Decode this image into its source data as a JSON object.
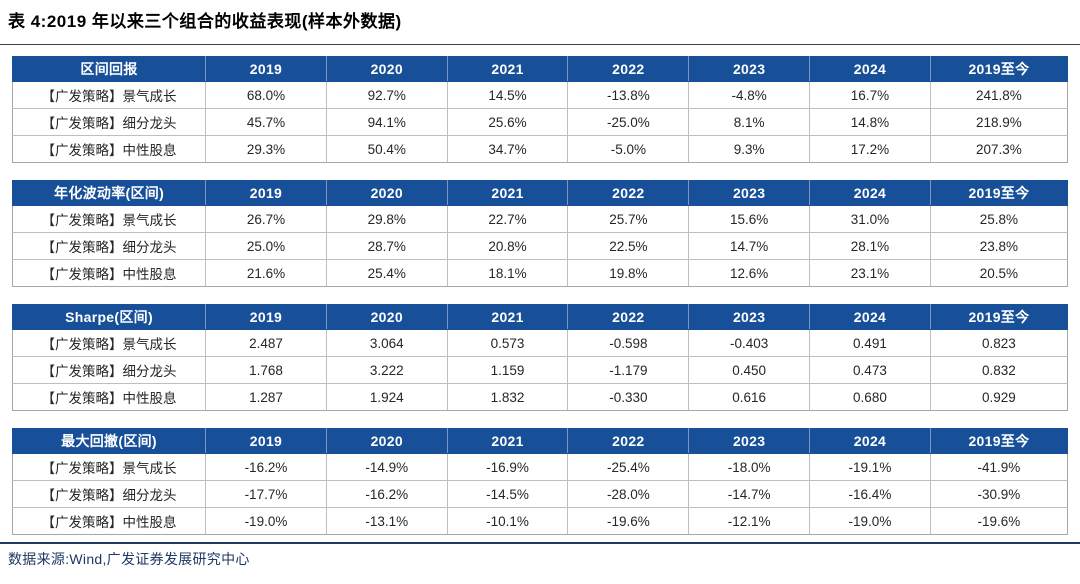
{
  "page": {
    "title": "表 4:2019 年以来三个组合的收益表现(样本外数据)",
    "source": "数据来源:Wind,广发证券发展研究中心"
  },
  "colors": {
    "header_bg": "#175099",
    "header_text": "#FFFFFF",
    "body_text": "#262626",
    "grid_line": "#BFBFBF",
    "source_text": "#1F3864"
  },
  "chart_data": {
    "type": "table",
    "title": "表 4:2019 年以来三个组合的收益表现(样本外数据)",
    "tables": [
      {
        "metric": "区间回报",
        "columns": [
          "2019",
          "2020",
          "2021",
          "2022",
          "2023",
          "2024",
          "2019至今"
        ],
        "rows": [
          {
            "label": "【广发策略】景气成长",
            "values": [
              "68.0%",
              "92.7%",
              "14.5%",
              "-13.8%",
              "-4.8%",
              "16.7%",
              "241.8%"
            ]
          },
          {
            "label": "【广发策略】细分龙头",
            "values": [
              "45.7%",
              "94.1%",
              "25.6%",
              "-25.0%",
              "8.1%",
              "14.8%",
              "218.9%"
            ]
          },
          {
            "label": "【广发策略】中性股息",
            "values": [
              "29.3%",
              "50.4%",
              "34.7%",
              "-5.0%",
              "9.3%",
              "17.2%",
              "207.3%"
            ]
          }
        ]
      },
      {
        "metric": "年化波动率(区间)",
        "columns": [
          "2019",
          "2020",
          "2021",
          "2022",
          "2023",
          "2024",
          "2019至今"
        ],
        "rows": [
          {
            "label": "【广发策略】景气成长",
            "values": [
              "26.7%",
              "29.8%",
              "22.7%",
              "25.7%",
              "15.6%",
              "31.0%",
              "25.8%"
            ]
          },
          {
            "label": "【广发策略】细分龙头",
            "values": [
              "25.0%",
              "28.7%",
              "20.8%",
              "22.5%",
              "14.7%",
              "28.1%",
              "23.8%"
            ]
          },
          {
            "label": "【广发策略】中性股息",
            "values": [
              "21.6%",
              "25.4%",
              "18.1%",
              "19.8%",
              "12.6%",
              "23.1%",
              "20.5%"
            ]
          }
        ]
      },
      {
        "metric": "Sharpe(区间)",
        "columns": [
          "2019",
          "2020",
          "2021",
          "2022",
          "2023",
          "2024",
          "2019至今"
        ],
        "rows": [
          {
            "label": "【广发策略】景气成长",
            "values": [
              "2.487",
              "3.064",
              "0.573",
              "-0.598",
              "-0.403",
              "0.491",
              "0.823"
            ]
          },
          {
            "label": "【广发策略】细分龙头",
            "values": [
              "1.768",
              "3.222",
              "1.159",
              "-1.179",
              "0.450",
              "0.473",
              "0.832"
            ]
          },
          {
            "label": "【广发策略】中性股息",
            "values": [
              "1.287",
              "1.924",
              "1.832",
              "-0.330",
              "0.616",
              "0.680",
              "0.929"
            ]
          }
        ]
      },
      {
        "metric": "最大回撤(区间)",
        "columns": [
          "2019",
          "2020",
          "2021",
          "2022",
          "2023",
          "2024",
          "2019至今"
        ],
        "rows": [
          {
            "label": "【广发策略】景气成长",
            "values": [
              "-16.2%",
              "-14.9%",
              "-16.9%",
              "-25.4%",
              "-18.0%",
              "-19.1%",
              "-41.9%"
            ]
          },
          {
            "label": "【广发策略】细分龙头",
            "values": [
              "-17.7%",
              "-16.2%",
              "-14.5%",
              "-28.0%",
              "-14.7%",
              "-16.4%",
              "-30.9%"
            ]
          },
          {
            "label": "【广发策略】中性股息",
            "values": [
              "-19.0%",
              "-13.1%",
              "-10.1%",
              "-19.6%",
              "-12.1%",
              "-19.0%",
              "-19.6%"
            ]
          }
        ]
      }
    ]
  }
}
